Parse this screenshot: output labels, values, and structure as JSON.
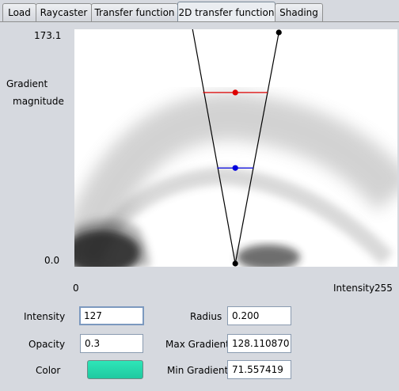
{
  "tabs": [
    {
      "label": "Load",
      "active": false
    },
    {
      "label": "Raycaster",
      "active": false
    },
    {
      "label": "Transfer function",
      "active": false
    },
    {
      "label": "2D transfer function",
      "active": true
    },
    {
      "label": "Shading",
      "active": false
    }
  ],
  "plot": {
    "y_max_label": "173.1",
    "y_min_label": "0.0",
    "y_axis_label_line1": "Gradient",
    "y_axis_label_line2": "magnitude",
    "x_min_label": "0",
    "x_axis_label": "Intensity",
    "x_max_label": "255",
    "colors": {
      "triangle": "#000000",
      "upper_control": "#dd0000",
      "lower_control": "#0000dd",
      "density": "#777777"
    }
  },
  "chart_data": {
    "type": "scatter",
    "title": "",
    "xlabel": "Intensity",
    "ylabel": "Gradient magnitude",
    "xlim": [
      0,
      255
    ],
    "ylim": [
      0,
      173.1
    ],
    "series": [
      {
        "name": "triangle-apex",
        "points": [
          [
            127,
            0
          ]
        ]
      },
      {
        "name": "triangle-top-right",
        "points": [
          [
            161.4,
            173.1
          ]
        ]
      },
      {
        "name": "max-gradient-control",
        "points": [
          [
            127,
            128.1
          ]
        ]
      },
      {
        "name": "min-gradient-control",
        "points": [
          [
            127,
            71.6
          ]
        ]
      }
    ]
  },
  "form": {
    "intensity": {
      "label": "Intensity",
      "value": "127"
    },
    "opacity": {
      "label": "Opacity",
      "value": "0.3"
    },
    "color": {
      "label": "Color",
      "value": "#2ee6b8"
    },
    "radius": {
      "label": "Radius",
      "value": "0.200"
    },
    "max_gradient": {
      "label": "Max Gradient",
      "value": "128.110870"
    },
    "min_gradient": {
      "label": "Min Gradient",
      "value": "71.557419"
    }
  }
}
